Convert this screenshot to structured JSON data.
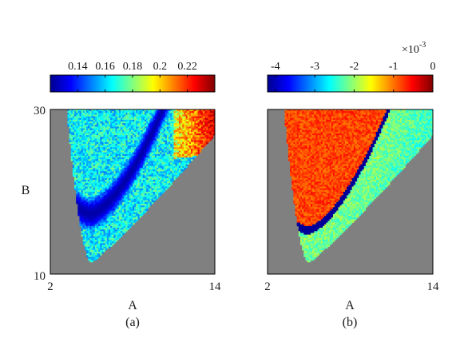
{
  "chart_data": [
    {
      "type": "heatmap",
      "panel_label": "(a)",
      "xlabel": "A",
      "ylabel": "B",
      "xlim": [
        2,
        14
      ],
      "ylim": [
        10,
        30
      ],
      "x_ticks": [
        "2",
        "14"
      ],
      "y_ticks": [
        "10",
        "30"
      ],
      "background_color": "#808080",
      "colormap": "jet",
      "colorbar": {
        "range": [
          0.12,
          0.24
        ],
        "ticks": [
          "0.14",
          "0.16",
          "0.18",
          "0.2",
          "0.22"
        ],
        "tick_values": [
          0.14,
          0.16,
          0.18,
          0.2,
          0.22
        ],
        "exponent": ""
      },
      "region": {
        "description_values": "valid region bounded by tip at A≈5.0, B≈11.4",
        "tip": {
          "A": 5.0,
          "B": 11.4
        },
        "left_edge_at_top": {
          "A": 3.2,
          "B": 30
        },
        "right_edge_at_top": {
          "A": 14,
          "B": 26.9
        }
      },
      "bands": [
        {
          "label": "low-value band",
          "value": 0.125,
          "vertex": {
            "A": 4.9,
            "B": 17.3
          },
          "upper_end": {
            "A": 10.2,
            "B": 30
          }
        },
        {
          "label": "high-value edge",
          "value": 0.23,
          "location": "upper-right corner"
        }
      ],
      "typical_value": 0.165
    },
    {
      "type": "heatmap",
      "panel_label": "(b)",
      "xlabel": "A",
      "ylabel": "",
      "xlim": [
        2,
        14
      ],
      "ylim": [
        10,
        30
      ],
      "x_ticks": [
        "2",
        "14"
      ],
      "y_ticks": [],
      "background_color": "#808080",
      "colormap": "jet",
      "colorbar": {
        "range": [
          -4.2,
          0
        ],
        "ticks": [
          "-4",
          "-3",
          "-2",
          "-1",
          "0"
        ],
        "tick_values": [
          -4,
          -3,
          -2,
          -1,
          0
        ],
        "exponent_base": "×10",
        "exponent_power": "-3"
      },
      "region": {
        "tip": {
          "A": 5.0,
          "B": 11.4
        },
        "left_edge_at_top": {
          "A": 3.2,
          "B": 30
        },
        "right_edge_at_top": {
          "A": 14,
          "B": 26.9
        }
      },
      "bands": [
        {
          "label": "dividing curve",
          "value": -4.1,
          "vertex": {
            "A": 4.9,
            "B": 15.3
          },
          "upper_end": {
            "A": 10.8,
            "B": 30
          }
        }
      ],
      "value_above_curve": -0.8,
      "value_below_curve": -2.1
    }
  ]
}
